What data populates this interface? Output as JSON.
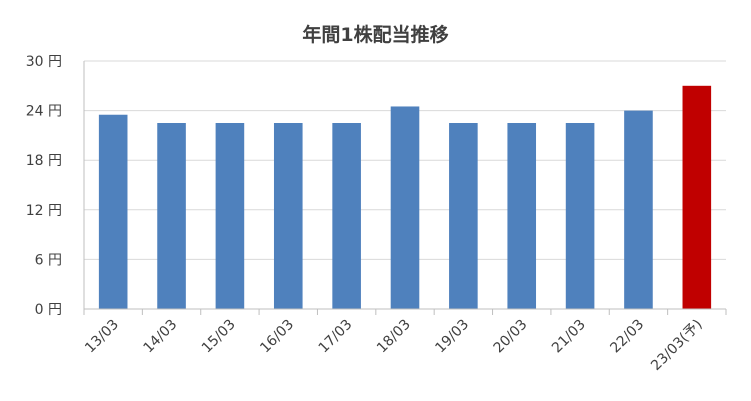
{
  "chart_data": {
    "type": "bar",
    "title": "年間1株配当推移",
    "xlabel": "",
    "ylabel": "",
    "categories": [
      "13/03",
      "14/03",
      "15/03",
      "16/03",
      "17/03",
      "18/03",
      "19/03",
      "20/03",
      "21/03",
      "22/03",
      "23/03(予)"
    ],
    "values": [
      23.5,
      22.5,
      22.5,
      22.5,
      22.5,
      24.5,
      22.5,
      22.5,
      22.5,
      24,
      27
    ],
    "ylim": [
      0,
      30
    ],
    "yticks": [
      0,
      6,
      12,
      18,
      24,
      30
    ],
    "ytick_labels": [
      "0 円",
      "6 円",
      "12 円",
      "18 円",
      "24 円",
      "30 円"
    ],
    "grid": true,
    "legend": "none",
    "colors": {
      "bar": "#4f81bd",
      "highlight": "#c00000",
      "grid": "#d9d9d9",
      "axis": "#bfbfbf",
      "text": "#404040"
    },
    "highlight_index": 10
  }
}
